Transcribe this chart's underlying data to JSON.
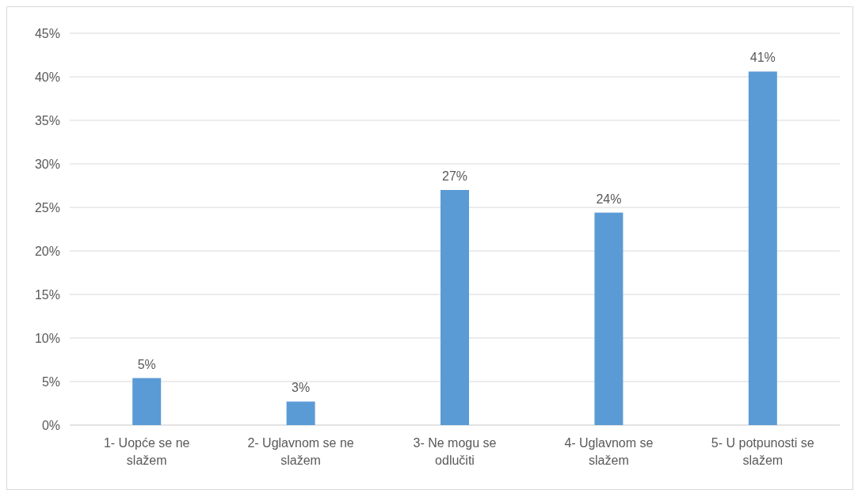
{
  "chart_data": {
    "type": "bar",
    "categories": [
      "1- Uopće se ne slažem",
      "2- Uglavnom se ne slažem",
      "3- Ne mogu se odlučiti",
      "4- Uglavnom se slažem",
      "5- U potpunosti se slažem"
    ],
    "values": [
      5.4,
      2.7,
      27,
      24.4,
      40.6
    ],
    "value_labels": [
      "5%",
      "3%",
      "27%",
      "24%",
      "41%"
    ],
    "color": "#5b9bd5",
    "ylim": [
      0,
      45
    ],
    "yticks": [
      {
        "value": 0,
        "label": "0%"
      },
      {
        "value": 5,
        "label": "5%"
      },
      {
        "value": 10,
        "label": "10%"
      },
      {
        "value": 15,
        "label": "15%"
      },
      {
        "value": 20,
        "label": "20%"
      },
      {
        "value": 25,
        "label": "25%"
      },
      {
        "value": 30,
        "label": "30%"
      },
      {
        "value": 35,
        "label": "35%"
      },
      {
        "value": 40,
        "label": "40%"
      },
      {
        "value": 45,
        "label": "45%"
      }
    ],
    "grid": "y"
  }
}
